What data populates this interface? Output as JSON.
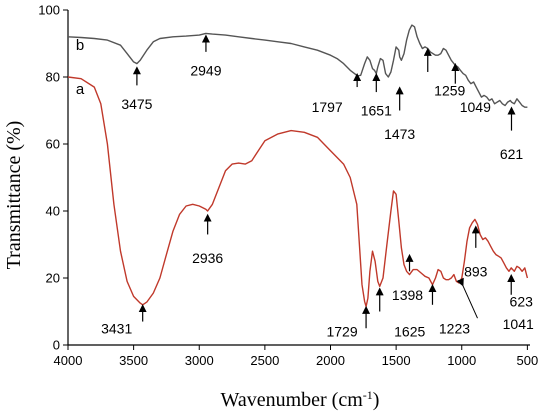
{
  "chart_data": {
    "type": "line",
    "title": "",
    "xlabel": "Wavenumber (cm",
    "xlabel_sup": "-1",
    "xlabel_close": ")",
    "ylabel": "Transmittance (%)",
    "xlim": [
      4000,
      480
    ],
    "ylim": [
      0,
      100
    ],
    "x_reversed": true,
    "grid": false,
    "x_ticks": [
      4000,
      3500,
      3000,
      2500,
      2000,
      1500,
      1000,
      500
    ],
    "y_ticks": [
      0,
      20,
      40,
      60,
      80,
      100
    ],
    "series": [
      {
        "name": "a",
        "color": "#c0392b",
        "x": [
          4000,
          3900,
          3800,
          3750,
          3700,
          3650,
          3600,
          3550,
          3500,
          3450,
          3431,
          3400,
          3350,
          3300,
          3250,
          3200,
          3150,
          3100,
          3050,
          3000,
          2950,
          2936,
          2900,
          2850,
          2800,
          2750,
          2700,
          2650,
          2600,
          2550,
          2500,
          2400,
          2300,
          2200,
          2100,
          2000,
          1900,
          1850,
          1800,
          1780,
          1760,
          1740,
          1729,
          1715,
          1700,
          1680,
          1660,
          1640,
          1625,
          1600,
          1570,
          1540,
          1520,
          1500,
          1480,
          1460,
          1440,
          1420,
          1398,
          1370,
          1340,
          1310,
          1280,
          1250,
          1223,
          1200,
          1180,
          1160,
          1140,
          1120,
          1100,
          1080,
          1060,
          1041,
          1020,
          1000,
          980,
          960,
          940,
          920,
          900,
          893,
          880,
          860,
          840,
          820,
          800,
          780,
          760,
          740,
          720,
          700,
          680,
          660,
          640,
          623,
          600,
          580,
          560,
          540,
          520,
          500
        ],
        "y": [
          80.0,
          79.5,
          77.0,
          72.0,
          60.0,
          42.0,
          28.0,
          19.0,
          14.5,
          12.5,
          12.0,
          12.8,
          15.5,
          20.0,
          27.0,
          34.0,
          39.0,
          41.5,
          42.0,
          41.5,
          40.5,
          40.0,
          42.0,
          47.0,
          52.0,
          54.0,
          54.3,
          54.0,
          55.0,
          58.0,
          61.0,
          63.0,
          64.0,
          63.5,
          62.0,
          58.0,
          54.0,
          50.0,
          42.0,
          30.0,
          18.0,
          13.0,
          11.5,
          14.0,
          22.0,
          28.0,
          25.0,
          19.0,
          17.5,
          20.0,
          30.0,
          40.0,
          46.0,
          45.0,
          37.0,
          29.0,
          24.0,
          22.0,
          21.0,
          22.5,
          22.5,
          21.5,
          20.5,
          20.0,
          18.0,
          20.0,
          22.5,
          22.0,
          20.0,
          19.5,
          19.5,
          20.0,
          21.0,
          19.0,
          18.5,
          20.0,
          25.0,
          31.0,
          35.0,
          36.5,
          37.5,
          37.0,
          36.0,
          33.0,
          31.5,
          32.0,
          31.0,
          29.5,
          28.0,
          27.0,
          26.5,
          26.0,
          24.5,
          23.0,
          22.0,
          23.0,
          22.0,
          23.5,
          23.0,
          22.0,
          23.0,
          20.0
        ]
      },
      {
        "name": "b",
        "color": "#555555",
        "x": [
          4000,
          3900,
          3800,
          3700,
          3600,
          3550,
          3500,
          3475,
          3450,
          3400,
          3350,
          3300,
          3200,
          3100,
          3000,
          2950,
          2900,
          2800,
          2700,
          2600,
          2500,
          2400,
          2300,
          2200,
          2100,
          2000,
          1950,
          1900,
          1850,
          1800,
          1797,
          1770,
          1740,
          1720,
          1700,
          1680,
          1665,
          1651,
          1640,
          1620,
          1600,
          1580,
          1560,
          1540,
          1520,
          1500,
          1480,
          1473,
          1460,
          1440,
          1420,
          1400,
          1380,
          1360,
          1340,
          1320,
          1300,
          1280,
          1259,
          1240,
          1220,
          1200,
          1180,
          1160,
          1140,
          1120,
          1100,
          1080,
          1060,
          1049,
          1030,
          1010,
          990,
          970,
          950,
          930,
          910,
          890,
          870,
          850,
          830,
          810,
          790,
          770,
          750,
          730,
          710,
          690,
          670,
          650,
          630,
          621,
          600,
          580,
          560,
          540,
          520,
          500
        ],
        "y": [
          92.0,
          91.8,
          91.5,
          91.0,
          89.5,
          87.0,
          84.5,
          84.0,
          85.0,
          88.0,
          90.5,
          91.5,
          92.0,
          92.2,
          92.5,
          93.0,
          92.8,
          92.5,
          92.0,
          91.5,
          91.0,
          90.5,
          90.0,
          89.0,
          88.0,
          86.5,
          85.5,
          84.0,
          82.0,
          80.5,
          80.3,
          80.5,
          84.0,
          86.0,
          85.0,
          82.5,
          82.0,
          81.0,
          83.0,
          85.5,
          85.0,
          81.0,
          80.0,
          81.5,
          85.0,
          89.0,
          88.0,
          86.0,
          85.0,
          87.0,
          91.0,
          94.0,
          95.5,
          95.0,
          92.0,
          90.0,
          88.5,
          89.0,
          88.5,
          87.5,
          87.0,
          86.5,
          86.5,
          87.0,
          88.5,
          88.0,
          86.5,
          85.0,
          84.0,
          83.5,
          83.0,
          82.0,
          81.0,
          80.5,
          79.0,
          78.0,
          78.5,
          77.0,
          75.5,
          74.0,
          74.5,
          74.0,
          73.0,
          73.5,
          72.0,
          72.5,
          73.0,
          72.0,
          71.5,
          72.5,
          73.0,
          72.5,
          72.0,
          73.5,
          72.5,
          71.5,
          71.0,
          71.0
        ]
      }
    ],
    "series_labels": [
      {
        "text": "a",
        "x": 3940,
        "y": 75
      },
      {
        "text": "b",
        "x": 3940,
        "y": 88
      }
    ],
    "annotations": [
      {
        "text": "3475",
        "x": 3475,
        "arrow_from": 77.5,
        "arrow_to": 82,
        "label_y": 72
      },
      {
        "text": "2949",
        "x": 2949,
        "arrow_from": 87.5,
        "arrow_to": 91.5,
        "label_y": 82
      },
      {
        "text": "1797",
        "x": 1797,
        "arrow_from": 77,
        "arrow_to": 80,
        "label_y": 71,
        "label_dx": -30
      },
      {
        "text": "1651",
        "x": 1651,
        "arrow_from": 75.5,
        "arrow_to": 80,
        "label_y": 70
      },
      {
        "text": "1473",
        "x": 1473,
        "arrow_from": 70,
        "arrow_to": 76,
        "label_y": 63
      },
      {
        "text": "1259",
        "x": 1259,
        "arrow_from": 81.5,
        "arrow_to": 87.5,
        "label_y": 76,
        "label_dx": 22
      },
      {
        "text": "1049",
        "x": 1049,
        "arrow_from": 78,
        "arrow_to": 83,
        "label_y": 71,
        "label_dx": 20
      },
      {
        "text": "621",
        "x": 621,
        "arrow_from": 64,
        "arrow_to": 70,
        "label_y": 57
      },
      {
        "text": "3431",
        "x": 3431,
        "arrow_from": 7,
        "arrow_to": 11,
        "label_y": 5,
        "label_dx": -26
      },
      {
        "text": "2936",
        "x": 2936,
        "arrow_from": 33,
        "arrow_to": 38,
        "label_y": 26
      },
      {
        "text": "1729",
        "x": 1729,
        "arrow_from": 5,
        "arrow_to": 10.5,
        "label_y": 4,
        "label_dx": -24
      },
      {
        "text": "1625",
        "x": 1625,
        "arrow_from": 10,
        "arrow_to": 16,
        "label_y": 4,
        "label_dx": 30
      },
      {
        "text": "1398",
        "x": 1398,
        "arrow_from": 22,
        "arrow_to": 26,
        "label_y": 15,
        "label_dx": -2
      },
      {
        "text": "1223",
        "x": 1223,
        "arrow_from": 12,
        "arrow_to": 17,
        "label_y": 5,
        "label_dx": 22
      },
      {
        "text": "893",
        "x": 893,
        "arrow_from": 29,
        "arrow_to": 34.5,
        "label_y": 22
      },
      {
        "text": "1041",
        "text_only": true,
        "x": 780,
        "label_y": 6,
        "line_from": [
          1000,
          18.5
        ],
        "line_to": [
          880,
          8
        ]
      },
      {
        "text": "623",
        "x": 623,
        "arrow_from": 15,
        "arrow_to": 20,
        "label_y": 13,
        "label_dx": 10
      }
    ]
  }
}
